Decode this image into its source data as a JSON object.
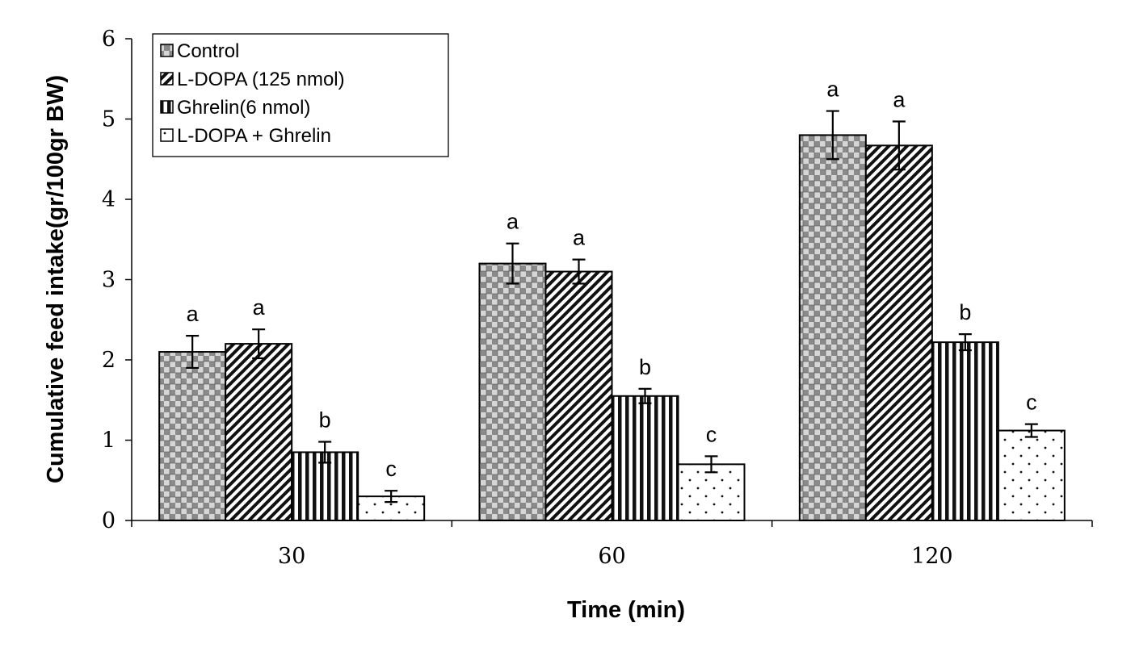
{
  "chart_data": {
    "type": "bar",
    "title": "",
    "xlabel": "Time (min)",
    "ylabel": "Cumulative feed intake(gr/100gr BW)",
    "categories": [
      "30",
      "60",
      "120"
    ],
    "ylim": [
      0,
      6
    ],
    "yticks": [
      0,
      1,
      2,
      3,
      4,
      5,
      6
    ],
    "grid": false,
    "legend_position": "top-left",
    "series": [
      {
        "name": "Control",
        "pattern": "checker",
        "values": [
          2.1,
          3.2,
          4.8
        ],
        "errors": [
          0.2,
          0.25,
          0.3
        ],
        "labels": [
          "a",
          "a",
          "a"
        ]
      },
      {
        "name": "L-DOPA (125 nmol)",
        "pattern": "diagonal",
        "values": [
          2.2,
          3.1,
          4.67
        ],
        "errors": [
          0.18,
          0.15,
          0.3
        ],
        "labels": [
          "a",
          "a",
          "a"
        ]
      },
      {
        "name": "Ghrelin(6 nmol)",
        "pattern": "vertical",
        "values": [
          0.85,
          1.55,
          2.22
        ],
        "errors": [
          0.13,
          0.09,
          0.1
        ],
        "labels": [
          "b",
          "b",
          "b"
        ]
      },
      {
        "name": "L-DOPA + Ghrelin",
        "pattern": "dots",
        "values": [
          0.3,
          0.7,
          1.12
        ],
        "errors": [
          0.07,
          0.1,
          0.08
        ],
        "labels": [
          "c",
          "c",
          "c"
        ]
      }
    ]
  }
}
